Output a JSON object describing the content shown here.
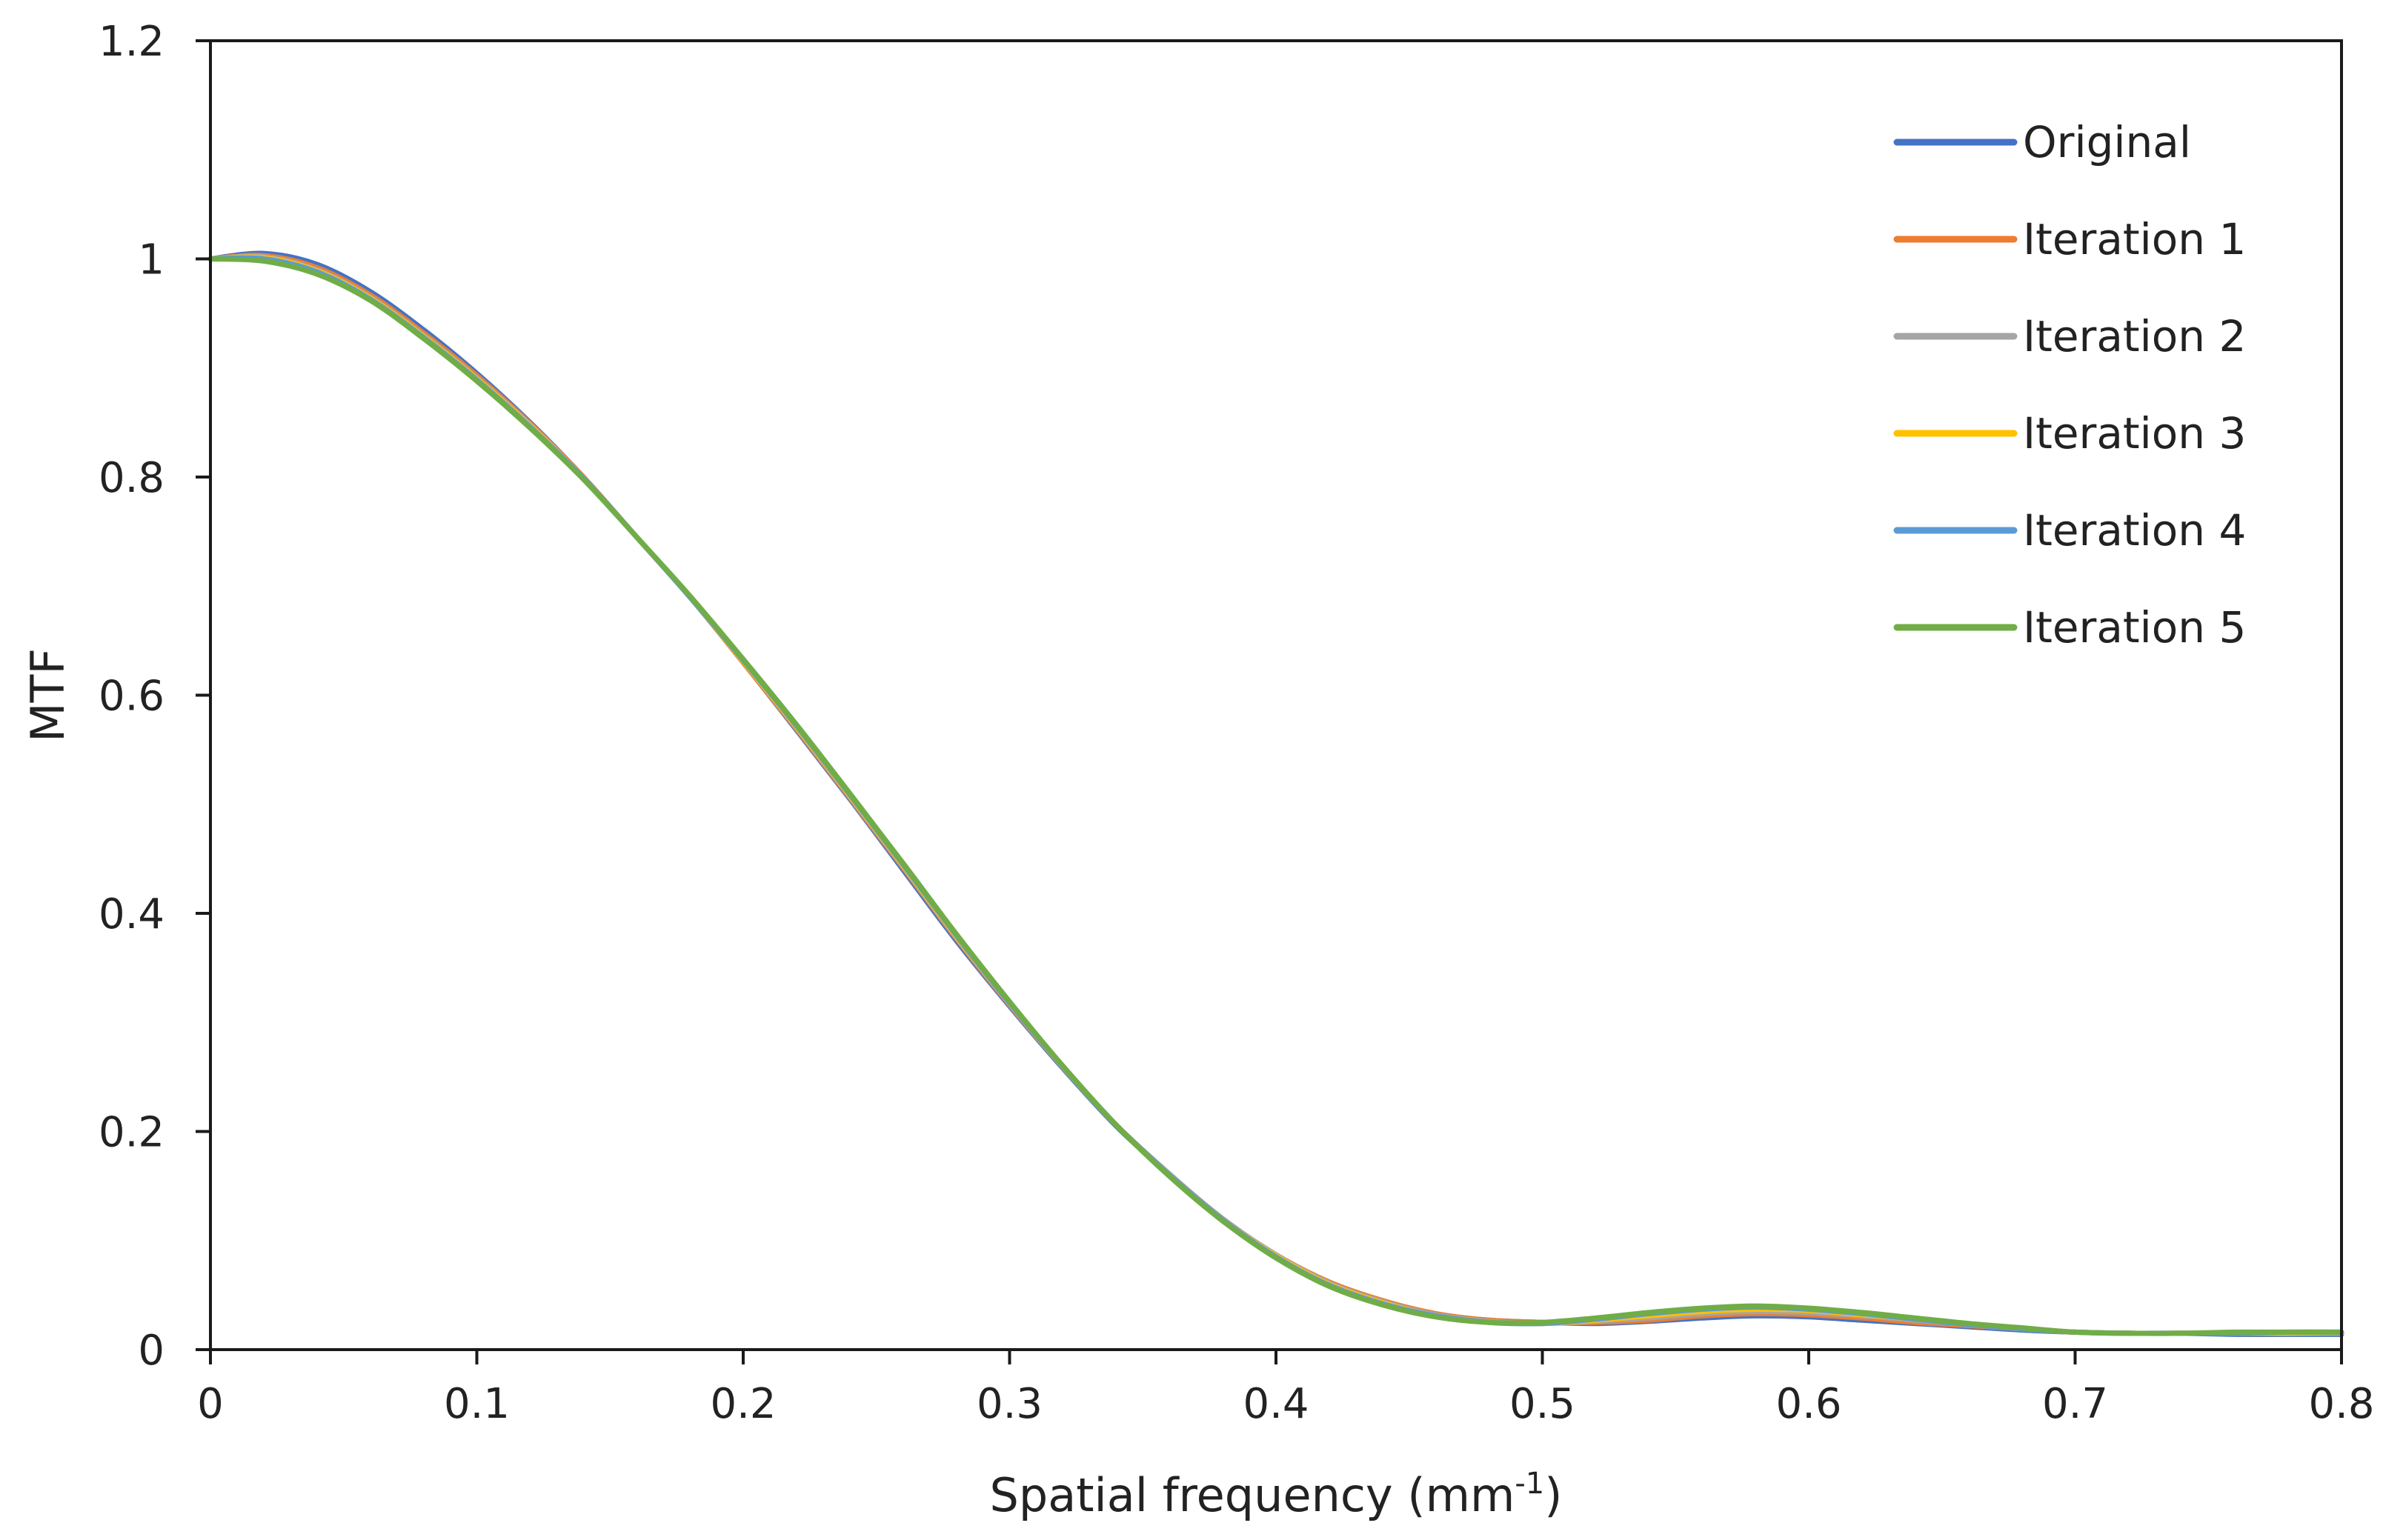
{
  "chart_data": {
    "type": "line",
    "title": "",
    "xlabel": "Spatial frequency (mm",
    "xlabel_superscript": "-1",
    "xlabel_suffix": ")",
    "ylabel": "MTF",
    "xlim": [
      0,
      0.8
    ],
    "ylim": [
      0,
      1.2
    ],
    "xticks": [
      0,
      0.1,
      0.2,
      0.3,
      0.4,
      0.5,
      0.6,
      0.7,
      0.8
    ],
    "xtick_labels": [
      "0",
      "0.1",
      "0.2",
      "0.3",
      "0.4",
      "0.5",
      "0.6",
      "0.7",
      "0.8"
    ],
    "yticks": [
      0,
      0.2,
      0.4,
      0.6,
      0.8,
      1,
      1.2
    ],
    "ytick_labels": [
      "0",
      "0.2",
      "0.4",
      "0.6",
      "0.8",
      "1",
      "1.2"
    ],
    "grid": false,
    "legend_position": "top-right",
    "x": [
      0,
      0.02,
      0.04,
      0.06,
      0.08,
      0.1,
      0.12,
      0.14,
      0.16,
      0.18,
      0.2,
      0.22,
      0.24,
      0.26,
      0.28,
      0.3,
      0.32,
      0.34,
      0.36,
      0.38,
      0.4,
      0.42,
      0.44,
      0.46,
      0.48,
      0.5,
      0.52,
      0.54,
      0.56,
      0.58,
      0.6,
      0.62,
      0.64,
      0.66,
      0.68,
      0.7,
      0.72,
      0.74,
      0.76,
      0.78,
      0.8
    ],
    "series": [
      {
        "name": "Original",
        "color": "#4472C4",
        "values": [
          1.0,
          1.005,
          0.995,
          0.97,
          0.935,
          0.895,
          0.85,
          0.8,
          0.745,
          0.69,
          0.63,
          0.568,
          0.505,
          0.44,
          0.375,
          0.315,
          0.258,
          0.205,
          0.16,
          0.118,
          0.085,
          0.06,
          0.043,
          0.032,
          0.027,
          0.025,
          0.024,
          0.026,
          0.029,
          0.031,
          0.03,
          0.027,
          0.024,
          0.021,
          0.018,
          0.016,
          0.015,
          0.015,
          0.014,
          0.014,
          0.014
        ]
      },
      {
        "name": "Iteration 1",
        "color": "#ED7D31",
        "values": [
          1.0,
          1.003,
          0.992,
          0.967,
          0.932,
          0.893,
          0.849,
          0.8,
          0.745,
          0.69,
          0.63,
          0.569,
          0.506,
          0.442,
          0.377,
          0.316,
          0.259,
          0.206,
          0.161,
          0.12,
          0.087,
          0.062,
          0.045,
          0.033,
          0.027,
          0.025,
          0.025,
          0.027,
          0.031,
          0.033,
          0.032,
          0.029,
          0.025,
          0.022,
          0.019,
          0.016,
          0.015,
          0.015,
          0.015,
          0.015,
          0.015
        ]
      },
      {
        "name": "Iteration 2",
        "color": "#A5A5A5",
        "values": [
          1.0,
          1.002,
          0.99,
          0.965,
          0.93,
          0.891,
          0.848,
          0.799,
          0.745,
          0.69,
          0.631,
          0.57,
          0.507,
          0.443,
          0.378,
          0.317,
          0.259,
          0.206,
          0.161,
          0.12,
          0.087,
          0.061,
          0.044,
          0.032,
          0.026,
          0.024,
          0.026,
          0.029,
          0.033,
          0.035,
          0.034,
          0.031,
          0.027,
          0.023,
          0.019,
          0.016,
          0.015,
          0.015,
          0.015,
          0.015,
          0.015
        ]
      },
      {
        "name": "Iteration 3",
        "color": "#FFC000",
        "values": [
          1.0,
          1.001,
          0.989,
          0.964,
          0.929,
          0.89,
          0.847,
          0.799,
          0.745,
          0.69,
          0.631,
          0.571,
          0.508,
          0.444,
          0.379,
          0.318,
          0.26,
          0.206,
          0.16,
          0.119,
          0.086,
          0.06,
          0.043,
          0.031,
          0.025,
          0.024,
          0.027,
          0.031,
          0.035,
          0.037,
          0.036,
          0.032,
          0.028,
          0.023,
          0.019,
          0.016,
          0.015,
          0.015,
          0.015,
          0.015,
          0.016
        ]
      },
      {
        "name": "Iteration 4",
        "color": "#5B9BD5",
        "values": [
          1.0,
          1.0,
          0.988,
          0.963,
          0.928,
          0.889,
          0.846,
          0.799,
          0.745,
          0.69,
          0.632,
          0.572,
          0.509,
          0.445,
          0.38,
          0.318,
          0.26,
          0.206,
          0.16,
          0.119,
          0.085,
          0.059,
          0.042,
          0.031,
          0.025,
          0.024,
          0.028,
          0.033,
          0.037,
          0.039,
          0.037,
          0.033,
          0.028,
          0.023,
          0.019,
          0.016,
          0.015,
          0.015,
          0.015,
          0.016,
          0.016
        ]
      },
      {
        "name": "Iteration 5",
        "color": "#70AD47",
        "values": [
          1.0,
          0.998,
          0.986,
          0.962,
          0.927,
          0.888,
          0.845,
          0.798,
          0.745,
          0.691,
          0.633,
          0.573,
          0.51,
          0.446,
          0.381,
          0.319,
          0.26,
          0.206,
          0.159,
          0.118,
          0.084,
          0.058,
          0.041,
          0.03,
          0.025,
          0.025,
          0.029,
          0.034,
          0.038,
          0.04,
          0.038,
          0.034,
          0.029,
          0.024,
          0.02,
          0.016,
          0.015,
          0.015,
          0.016,
          0.016,
          0.016
        ]
      }
    ]
  }
}
